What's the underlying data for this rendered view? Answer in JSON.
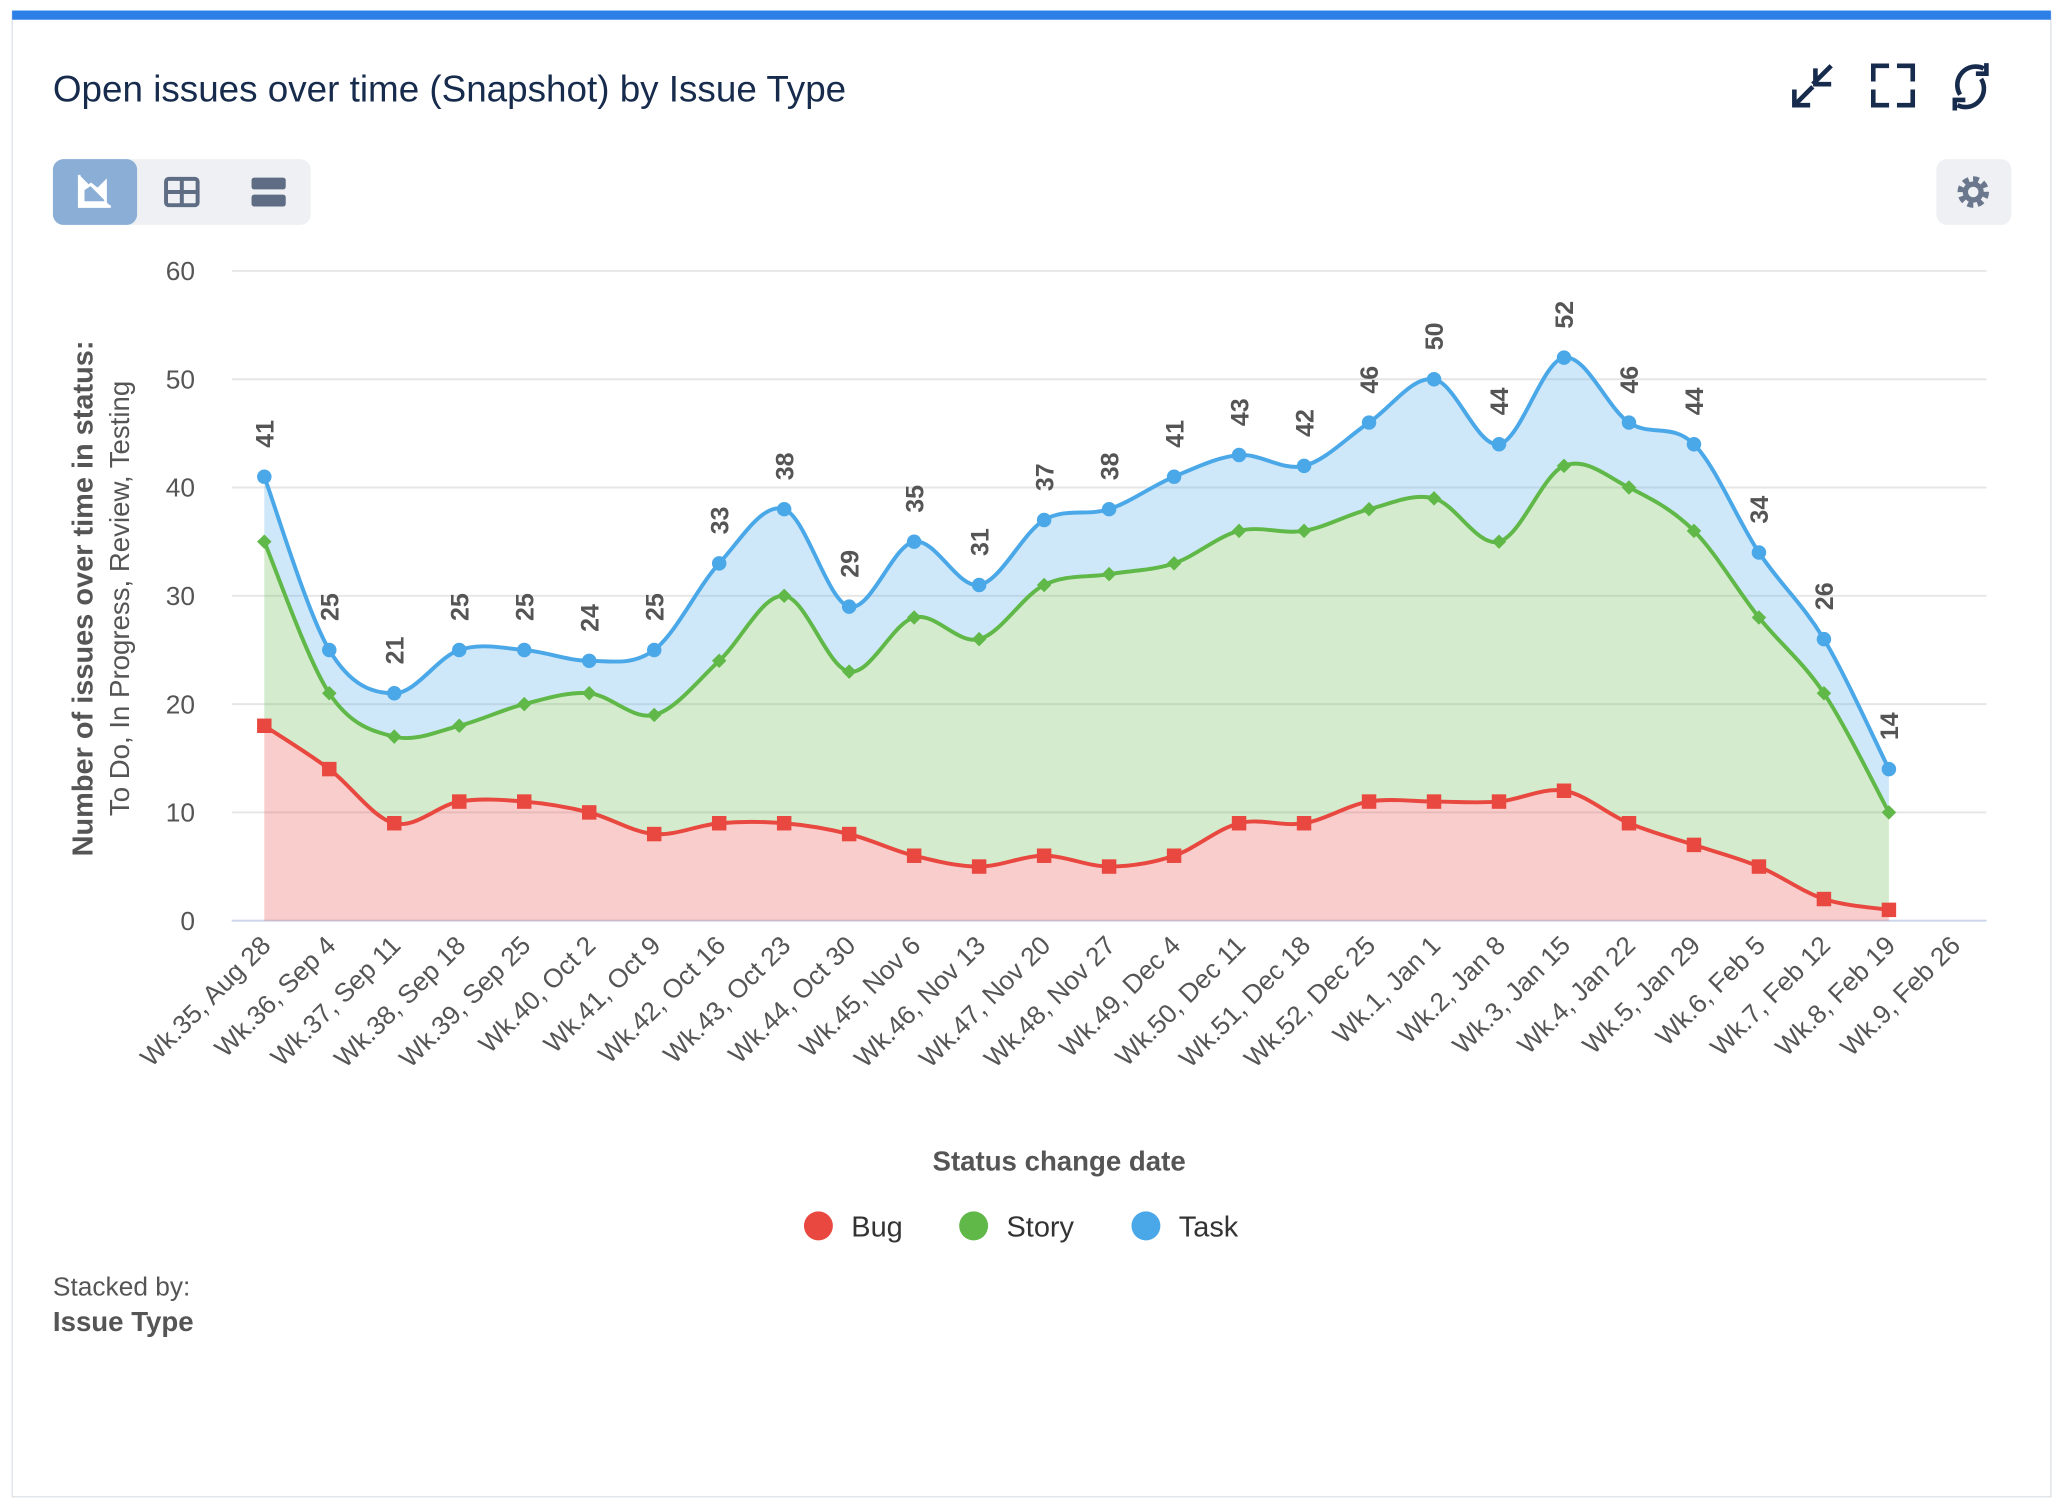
{
  "header": {
    "title": "Open issues over time (Snapshot) by Issue Type"
  },
  "footer": {
    "label": "Stacked by:",
    "value": "Issue Type"
  },
  "chart_data": {
    "type": "stacked-area-spline",
    "x_label": "Status change date",
    "y_label": [
      "Number of issues over time in status:",
      "To Do, In Progress, Review, Testing"
    ],
    "categories": [
      "Wk.35, Aug 28",
      "Wk.36, Sep 4",
      "Wk.37, Sep 11",
      "Wk.38, Sep 18",
      "Wk.39, Sep 25",
      "Wk.40, Oct 2",
      "Wk.41, Oct 9",
      "Wk.42, Oct 16",
      "Wk.43, Oct 23",
      "Wk.44, Oct 30",
      "Wk.45, Nov 6",
      "Wk.46, Nov 13",
      "Wk.47, Nov 20",
      "Wk.48, Nov 27",
      "Wk.49, Dec 4",
      "Wk.50, Dec 11",
      "Wk.51, Dec 18",
      "Wk.52, Dec 25",
      "Wk.1, Jan 1",
      "Wk.2, Jan 8",
      "Wk.3, Jan 15",
      "Wk.4, Jan 22",
      "Wk.5, Jan 29",
      "Wk.6, Feb 5",
      "Wk.7, Feb 12",
      "Wk.8, Feb 19",
      "Wk.9, Feb 26"
    ],
    "series": [
      {
        "name": "Bug",
        "color": "#e8483f",
        "marker": "square",
        "values": [
          18,
          14,
          9,
          11,
          11,
          10,
          8,
          9,
          9,
          8,
          6,
          5,
          6,
          5,
          6,
          9,
          9,
          11,
          11,
          11,
          12,
          9,
          7,
          5,
          2,
          1,
          null
        ]
      },
      {
        "name": "Story",
        "color": "#5fb847",
        "marker": "diamond",
        "values": [
          17,
          7,
          8,
          7,
          9,
          11,
          11,
          15,
          21,
          15,
          22,
          21,
          25,
          27,
          27,
          27,
          27,
          27,
          28,
          24,
          30,
          31,
          29,
          23,
          19,
          9,
          null
        ]
      },
      {
        "name": "Task",
        "color": "#4aa8e8",
        "marker": "circle",
        "values": [
          6,
          4,
          4,
          7,
          5,
          3,
          6,
          9,
          8,
          6,
          7,
          5,
          6,
          6,
          8,
          7,
          6,
          8,
          11,
          9,
          10,
          6,
          8,
          6,
          5,
          4,
          null
        ]
      }
    ],
    "totals": [
      41,
      25,
      21,
      25,
      25,
      24,
      25,
      33,
      38,
      29,
      35,
      31,
      37,
      38,
      41,
      43,
      42,
      46,
      50,
      44,
      52,
      46,
      44,
      34,
      26,
      14,
      null
    ],
    "ylim": [
      0,
      60
    ],
    "yticks": [
      0,
      10,
      20,
      30,
      40,
      50,
      60
    ],
    "grid": true,
    "legend": "bottom"
  }
}
